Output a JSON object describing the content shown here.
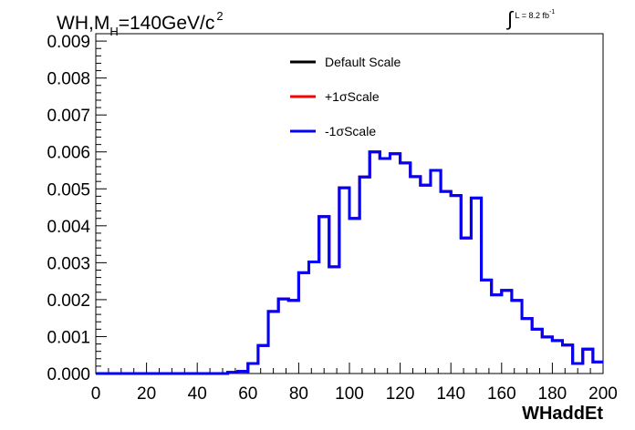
{
  "title": {
    "prefix": "WH,M",
    "subscript": "H",
    "suffix": "=140GeV/c",
    "superscript": "2"
  },
  "luminosity": {
    "symbol": "∫",
    "text": "L = 8.2 fb",
    "superscript": "-1"
  },
  "colors": {
    "default": "#000000",
    "plus": "#ff0000",
    "minus": "#0000ff",
    "axis": "#000000"
  },
  "chart_data": {
    "type": "line",
    "xlabel": "WHaddEt",
    "ylabel": "",
    "xlim": [
      0,
      200
    ],
    "ylim": [
      0,
      0.0092
    ],
    "x_ticks": [
      "0",
      "20",
      "40",
      "60",
      "80",
      "100",
      "120",
      "140",
      "160",
      "180",
      "200"
    ],
    "y_ticks": [
      "0.000",
      "0.001",
      "0.002",
      "0.003",
      "0.004",
      "0.005",
      "0.006",
      "0.007",
      "0.008",
      "0.009"
    ],
    "bin_edges": [
      0,
      4,
      8,
      12,
      16,
      20,
      24,
      28,
      32,
      36,
      40,
      44,
      48,
      52,
      56,
      60,
      64,
      68,
      72,
      76,
      80,
      84,
      88,
      92,
      96,
      100,
      104,
      108,
      112,
      116,
      120,
      124,
      128,
      132,
      136,
      140,
      144,
      148,
      152,
      156,
      160,
      164,
      168,
      172,
      176,
      180,
      184,
      188,
      192,
      196,
      200
    ],
    "legend": [
      {
        "name": "Default Scale",
        "color": "#000000"
      },
      {
        "name": "+1σScale",
        "color": "#ff0000"
      },
      {
        "name": "-1σScale",
        "color": "#0000ff"
      }
    ],
    "series": [
      {
        "name": "Default Scale",
        "values": [
          0,
          0,
          0,
          0,
          0,
          0,
          0,
          0,
          0,
          0,
          0,
          0,
          0,
          3e-05,
          6e-05,
          0.00027,
          0.00076,
          0.00168,
          0.00202,
          0.00198,
          0.00273,
          0.00302,
          0.00425,
          0.00289,
          0.00503,
          0.0042,
          0.00532,
          0.006,
          0.00582,
          0.00595,
          0.0057,
          0.00533,
          0.0051,
          0.0055,
          0.00493,
          0.00482,
          0.00367,
          0.00475,
          0.00253,
          0.00213,
          0.00225,
          0.00198,
          0.00149,
          0.0012,
          0.00099,
          0.00089,
          0.00077,
          0.00027,
          0.00066,
          0.00031
        ]
      },
      {
        "name": "+1σScale",
        "values": [
          0,
          0,
          0,
          0,
          0,
          0,
          0,
          0,
          0,
          0,
          0,
          0,
          0,
          3e-05,
          6e-05,
          0.00027,
          0.00076,
          0.00168,
          0.00202,
          0.00198,
          0.00273,
          0.00302,
          0.00425,
          0.00289,
          0.00503,
          0.0042,
          0.00532,
          0.006,
          0.00582,
          0.00595,
          0.0057,
          0.00533,
          0.0051,
          0.0055,
          0.00493,
          0.00482,
          0.00367,
          0.00475,
          0.00253,
          0.00213,
          0.00225,
          0.00198,
          0.00149,
          0.0012,
          0.00099,
          0.00089,
          0.00077,
          0.00027,
          0.00066,
          0.00031
        ]
      },
      {
        "name": "-1σScale",
        "values": [
          0,
          0,
          0,
          0,
          0,
          0,
          0,
          0,
          0,
          0,
          0,
          0,
          0,
          3e-05,
          6e-05,
          0.00027,
          0.00076,
          0.00168,
          0.00202,
          0.00198,
          0.00273,
          0.00302,
          0.00425,
          0.00289,
          0.00503,
          0.0042,
          0.00532,
          0.006,
          0.00582,
          0.00595,
          0.0057,
          0.00533,
          0.0051,
          0.0055,
          0.00493,
          0.00482,
          0.00367,
          0.00475,
          0.00253,
          0.00213,
          0.00225,
          0.00198,
          0.00149,
          0.0012,
          0.00099,
          0.00089,
          0.00077,
          0.00027,
          0.00066,
          0.00031
        ]
      }
    ]
  }
}
